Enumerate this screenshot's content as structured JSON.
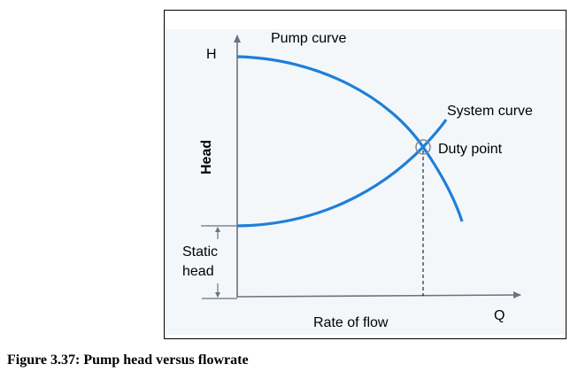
{
  "figure": {
    "labels": {
      "pump_curve": "Pump curve",
      "h_axis": "H",
      "head": "Head",
      "system_curve": "System curve",
      "duty_point": "Duty point",
      "static_line1": "Static",
      "static_line2": "head",
      "rate_of_flow": "Rate of flow",
      "q_axis": "Q"
    },
    "colors": {
      "curve": "#1e7fd8",
      "axis": "#6b7280",
      "background": "#f3f7fa"
    }
  },
  "caption": "Figure 3.37: Pump head versus flowrate"
}
